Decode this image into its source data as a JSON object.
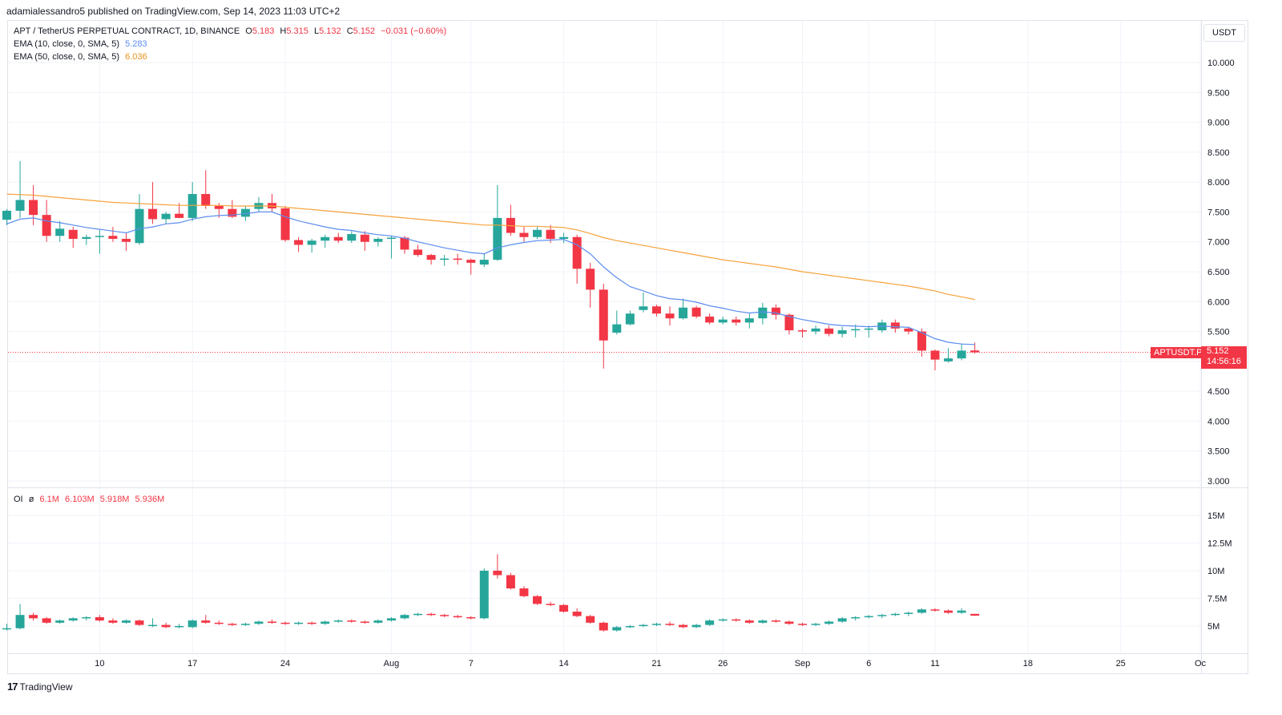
{
  "header": {
    "published_text": "adamialessandro5 published on TradingView.com, Sep 14, 2023 11:03 UTC+2"
  },
  "legend": {
    "symbol": "APT / TetherUS PERPETUAL CONTRACT, 1D, BINANCE",
    "o_label": "O",
    "o_value": "5.183",
    "h_label": "H",
    "h_value": "5.315",
    "l_label": "L",
    "l_value": "5.132",
    "c_label": "C",
    "c_value": "5.152",
    "change": "−0.031 (−0.60%)",
    "ema10_label": "EMA (10, close, 0, SMA, 5)",
    "ema10_value": "5.283",
    "ema50_label": "EMA (50, close, 0, SMA, 5)",
    "ema50_value": "6.036",
    "oi_label": "OI",
    "oi_icon": "eye-off-icon",
    "oi_o": "6.1M",
    "oi_h": "6.103M",
    "oi_l": "5.918M",
    "oi_c": "5.936M"
  },
  "price_scale": {
    "currency": "USDT",
    "last_price": "5.152",
    "countdown": "14:56:16",
    "symbol_tag": "APTUSDT.P"
  },
  "brand": {
    "name": "TradingView",
    "logo_text": "17"
  },
  "colors": {
    "up": "#26a69a",
    "down": "#f23645",
    "ema10": "#5b8def",
    "ema50": "#f7a23b",
    "grid": "#f0f3fa"
  },
  "chart_data": [
    {
      "type": "candlestick",
      "yaxis_ticks": [
        "3.000",
        "3.500",
        "4.000",
        "4.500",
        "5.000",
        "5.500",
        "6.000",
        "6.500",
        "7.000",
        "7.500",
        "8.000",
        "8.500",
        "9.000",
        "9.500",
        "10.000"
      ],
      "ylim": [
        2.9,
        10.6
      ],
      "xaxis_ticks": [
        {
          "label": "10",
          "idx": 7
        },
        {
          "label": "17",
          "idx": 14
        },
        {
          "label": "24",
          "idx": 21
        },
        {
          "label": "Aug",
          "idx": 29
        },
        {
          "label": "7",
          "idx": 35
        },
        {
          "label": "14",
          "idx": 42
        },
        {
          "label": "21",
          "idx": 49
        },
        {
          "label": "26",
          "idx": 54
        },
        {
          "label": "Sep",
          "idx": 60
        },
        {
          "label": "6",
          "idx": 65
        },
        {
          "label": "11",
          "idx": 70
        },
        {
          "label": "18",
          "idx": 77
        },
        {
          "label": "25",
          "idx": 84
        },
        {
          "label": "Oc",
          "idx": 90
        }
      ],
      "candles": [
        [
          7.37,
          7.55,
          7.28,
          7.52
        ],
        [
          7.52,
          8.35,
          7.4,
          7.7
        ],
        [
          7.7,
          7.95,
          7.28,
          7.45
        ],
        [
          7.45,
          7.7,
          7.0,
          7.1
        ],
        [
          7.1,
          7.35,
          7.0,
          7.22
        ],
        [
          7.2,
          7.25,
          6.9,
          7.05
        ],
        [
          7.05,
          7.12,
          6.95,
          7.08
        ],
        [
          7.08,
          7.2,
          6.8,
          7.1
        ],
        [
          7.1,
          7.25,
          7.0,
          7.05
        ],
        [
          7.05,
          7.15,
          6.85,
          7.0
        ],
        [
          6.98,
          7.8,
          6.95,
          7.55
        ],
        [
          7.55,
          8.0,
          7.3,
          7.38
        ],
        [
          7.38,
          7.5,
          7.3,
          7.47
        ],
        [
          7.47,
          7.65,
          7.4,
          7.4
        ],
        [
          7.4,
          8.0,
          7.35,
          7.8
        ],
        [
          7.8,
          8.2,
          7.55,
          7.6
        ],
        [
          7.6,
          7.65,
          7.4,
          7.55
        ],
        [
          7.55,
          7.7,
          7.4,
          7.42
        ],
        [
          7.42,
          7.6,
          7.35,
          7.55
        ],
        [
          7.55,
          7.75,
          7.5,
          7.65
        ],
        [
          7.65,
          7.8,
          7.5,
          7.56
        ],
        [
          7.56,
          7.6,
          7.0,
          7.03
        ],
        [
          7.03,
          7.08,
          6.83,
          6.95
        ],
        [
          6.95,
          7.05,
          6.82,
          7.02
        ],
        [
          7.02,
          7.12,
          6.9,
          7.08
        ],
        [
          7.08,
          7.15,
          6.98,
          7.02
        ],
        [
          7.02,
          7.18,
          6.98,
          7.13
        ],
        [
          7.12,
          7.18,
          6.85,
          7.0
        ],
        [
          7.0,
          7.08,
          6.92,
          7.05
        ],
        [
          7.05,
          7.1,
          6.72,
          7.07
        ],
        [
          7.07,
          7.1,
          6.8,
          6.87
        ],
        [
          6.87,
          6.95,
          6.75,
          6.78
        ],
        [
          6.78,
          6.8,
          6.62,
          6.7
        ],
        [
          6.7,
          6.78,
          6.6,
          6.72
        ],
        [
          6.72,
          6.8,
          6.62,
          6.7
        ],
        [
          6.7,
          6.72,
          6.45,
          6.65
        ],
        [
          6.62,
          6.8,
          6.58,
          6.7
        ],
        [
          6.7,
          7.95,
          6.68,
          7.4
        ],
        [
          7.4,
          7.62,
          7.1,
          7.15
        ],
        [
          7.15,
          7.25,
          7.0,
          7.08
        ],
        [
          7.08,
          7.25,
          7.05,
          7.2
        ],
        [
          7.2,
          7.28,
          6.98,
          7.05
        ],
        [
          7.05,
          7.15,
          6.98,
          7.08
        ],
        [
          7.08,
          7.12,
          6.3,
          6.55
        ],
        [
          6.55,
          6.65,
          5.9,
          6.2
        ],
        [
          6.2,
          6.3,
          4.88,
          5.35
        ],
        [
          5.48,
          5.85,
          5.45,
          5.62
        ],
        [
          5.62,
          5.85,
          5.6,
          5.8
        ],
        [
          5.86,
          6.15,
          5.82,
          5.92
        ],
        [
          5.92,
          5.95,
          5.75,
          5.8
        ],
        [
          5.8,
          5.92,
          5.6,
          5.72
        ],
        [
          5.72,
          6.05,
          5.7,
          5.9
        ],
        [
          5.9,
          5.93,
          5.72,
          5.75
        ],
        [
          5.75,
          5.8,
          5.62,
          5.65
        ],
        [
          5.65,
          5.75,
          5.62,
          5.7
        ],
        [
          5.7,
          5.75,
          5.6,
          5.65
        ],
        [
          5.65,
          5.8,
          5.55,
          5.72
        ],
        [
          5.72,
          5.98,
          5.62,
          5.9
        ],
        [
          5.9,
          5.95,
          5.7,
          5.78
        ],
        [
          5.78,
          5.8,
          5.45,
          5.52
        ],
        [
          5.52,
          5.55,
          5.4,
          5.5
        ],
        [
          5.5,
          5.6,
          5.45,
          5.55
        ],
        [
          5.55,
          5.6,
          5.42,
          5.46
        ],
        [
          5.46,
          5.58,
          5.4,
          5.52
        ],
        [
          5.52,
          5.62,
          5.4,
          5.54
        ],
        [
          5.54,
          5.6,
          5.4,
          5.55
        ],
        [
          5.52,
          5.7,
          5.48,
          5.65
        ],
        [
          5.65,
          5.7,
          5.48,
          5.55
        ],
        [
          5.55,
          5.58,
          5.45,
          5.5
        ],
        [
          5.5,
          5.55,
          5.08,
          5.18
        ],
        [
          5.18,
          5.2,
          4.85,
          5.03
        ],
        [
          5.0,
          5.22,
          4.98,
          5.05
        ],
        [
          5.05,
          5.3,
          5.02,
          5.18
        ],
        [
          5.183,
          5.315,
          5.132,
          5.152
        ]
      ],
      "ema10": [
        7.3,
        7.38,
        7.4,
        7.35,
        7.32,
        7.28,
        7.24,
        7.21,
        7.18,
        7.15,
        7.22,
        7.25,
        7.3,
        7.32,
        7.38,
        7.42,
        7.44,
        7.45,
        7.47,
        7.5,
        7.5,
        7.42,
        7.35,
        7.3,
        7.25,
        7.21,
        7.19,
        7.15,
        7.12,
        7.1,
        7.06,
        7.0,
        6.95,
        6.9,
        6.86,
        6.82,
        6.8,
        6.9,
        6.95,
        6.99,
        7.02,
        7.03,
        7.04,
        6.95,
        6.8,
        6.58,
        6.4,
        6.25,
        6.18,
        6.1,
        6.05,
        6.03,
        5.99,
        5.93,
        5.89,
        5.84,
        5.81,
        5.83,
        5.81,
        5.75,
        5.7,
        5.66,
        5.62,
        5.6,
        5.59,
        5.58,
        5.59,
        5.58,
        5.57,
        5.48,
        5.38,
        5.32,
        5.29,
        5.283
      ],
      "ema50": [
        7.8,
        7.79,
        7.78,
        7.76,
        7.74,
        7.72,
        7.7,
        7.68,
        7.66,
        7.65,
        7.64,
        7.63,
        7.62,
        7.61,
        7.61,
        7.61,
        7.61,
        7.6,
        7.6,
        7.6,
        7.6,
        7.58,
        7.56,
        7.54,
        7.52,
        7.5,
        7.48,
        7.46,
        7.44,
        7.42,
        7.4,
        7.38,
        7.36,
        7.34,
        7.32,
        7.3,
        7.28,
        7.28,
        7.27,
        7.26,
        7.26,
        7.25,
        7.24,
        7.2,
        7.14,
        7.07,
        7.02,
        6.98,
        6.94,
        6.9,
        6.86,
        6.82,
        6.78,
        6.74,
        6.7,
        6.67,
        6.64,
        6.61,
        6.58,
        6.54,
        6.5,
        6.47,
        6.44,
        6.41,
        6.38,
        6.35,
        6.32,
        6.29,
        6.26,
        6.22,
        6.18,
        6.12,
        6.08,
        6.036
      ]
    },
    {
      "type": "candlestick",
      "title": "OI",
      "yaxis_ticks": [
        "5M",
        "7.5M",
        "10M",
        "12.5M",
        "15M"
      ],
      "tick_values": [
        5,
        7.5,
        10,
        12.5,
        15
      ],
      "ylim": [
        3.0,
        16.8
      ],
      "candles": [
        [
          4.7,
          5.2,
          4.6,
          4.8
        ],
        [
          4.8,
          7.0,
          4.7,
          6.0
        ],
        [
          6.0,
          6.2,
          5.5,
          5.7
        ],
        [
          5.7,
          5.8,
          5.2,
          5.3
        ],
        [
          5.3,
          5.6,
          5.2,
          5.5
        ],
        [
          5.5,
          5.8,
          5.4,
          5.7
        ],
        [
          5.7,
          5.9,
          5.5,
          5.8
        ],
        [
          5.8,
          6.0,
          5.4,
          5.5
        ],
        [
          5.5,
          5.7,
          5.2,
          5.3
        ],
        [
          5.3,
          5.6,
          5.2,
          5.5
        ],
        [
          5.5,
          5.6,
          5.0,
          5.1
        ],
        [
          5.1,
          5.7,
          4.9,
          5.1
        ],
        [
          5.1,
          5.3,
          4.8,
          4.9
        ],
        [
          4.9,
          5.2,
          4.8,
          5.0
        ],
        [
          4.9,
          5.6,
          4.8,
          5.5
        ],
        [
          5.5,
          6.0,
          5.2,
          5.3
        ],
        [
          5.3,
          5.5,
          5.1,
          5.2
        ],
        [
          5.2,
          5.3,
          5.0,
          5.1
        ],
        [
          5.1,
          5.3,
          5.0,
          5.2
        ],
        [
          5.2,
          5.5,
          5.1,
          5.4
        ],
        [
          5.4,
          5.6,
          5.2,
          5.3
        ],
        [
          5.3,
          5.4,
          5.1,
          5.2
        ],
        [
          5.2,
          5.4,
          5.1,
          5.3
        ],
        [
          5.3,
          5.4,
          5.1,
          5.2
        ],
        [
          5.2,
          5.5,
          5.1,
          5.4
        ],
        [
          5.4,
          5.6,
          5.3,
          5.5
        ],
        [
          5.5,
          5.6,
          5.3,
          5.4
        ],
        [
          5.4,
          5.5,
          5.2,
          5.3
        ],
        [
          5.3,
          5.6,
          5.2,
          5.5
        ],
        [
          5.5,
          5.8,
          5.4,
          5.7
        ],
        [
          5.7,
          6.1,
          5.6,
          6.0
        ],
        [
          6.0,
          6.2,
          5.9,
          6.1
        ],
        [
          6.1,
          6.2,
          5.9,
          6.0
        ],
        [
          6.0,
          6.1,
          5.8,
          5.9
        ],
        [
          5.9,
          6.0,
          5.7,
          5.8
        ],
        [
          5.8,
          5.9,
          5.6,
          5.7
        ],
        [
          5.7,
          10.2,
          5.6,
          10.0
        ],
        [
          10.0,
          11.5,
          9.3,
          9.6
        ],
        [
          9.6,
          9.8,
          8.3,
          8.4
        ],
        [
          8.4,
          8.6,
          7.6,
          7.7
        ],
        [
          7.7,
          7.8,
          6.9,
          7.0
        ],
        [
          7.0,
          7.2,
          6.8,
          6.9
        ],
        [
          6.9,
          7.0,
          6.2,
          6.3
        ],
        [
          6.3,
          6.6,
          5.8,
          5.9
        ],
        [
          5.9,
          6.0,
          5.2,
          5.3
        ],
        [
          5.3,
          5.4,
          4.5,
          4.6
        ],
        [
          4.6,
          5.0,
          4.5,
          4.9
        ],
        [
          4.9,
          5.1,
          4.8,
          5.0
        ],
        [
          5.0,
          5.2,
          4.9,
          5.1
        ],
        [
          5.1,
          5.3,
          5.0,
          5.2
        ],
        [
          5.2,
          5.4,
          5.0,
          5.1
        ],
        [
          5.1,
          5.2,
          4.8,
          4.9
        ],
        [
          4.9,
          5.2,
          4.8,
          5.1
        ],
        [
          5.1,
          5.6,
          5.0,
          5.5
        ],
        [
          5.5,
          5.7,
          5.4,
          5.6
        ],
        [
          5.6,
          5.7,
          5.4,
          5.5
        ],
        [
          5.5,
          5.6,
          5.2,
          5.3
        ],
        [
          5.3,
          5.6,
          5.2,
          5.5
        ],
        [
          5.5,
          5.6,
          5.3,
          5.4
        ],
        [
          5.4,
          5.5,
          5.1,
          5.2
        ],
        [
          5.2,
          5.3,
          5.0,
          5.1
        ],
        [
          5.1,
          5.3,
          5.0,
          5.2
        ],
        [
          5.2,
          5.5,
          5.1,
          5.4
        ],
        [
          5.4,
          5.8,
          5.3,
          5.7
        ],
        [
          5.7,
          5.9,
          5.5,
          5.8
        ],
        [
          5.8,
          6.0,
          5.7,
          5.9
        ],
        [
          5.9,
          6.1,
          5.7,
          6.0
        ],
        [
          6.0,
          6.2,
          5.9,
          6.1
        ],
        [
          6.1,
          6.3,
          5.9,
          6.2
        ],
        [
          6.2,
          6.6,
          6.1,
          6.5
        ],
        [
          6.5,
          6.6,
          6.3,
          6.4
        ],
        [
          6.4,
          6.5,
          6.1,
          6.2
        ],
        [
          6.2,
          6.6,
          6.1,
          6.4
        ],
        [
          6.1,
          6.103,
          5.918,
          5.936
        ]
      ]
    }
  ]
}
